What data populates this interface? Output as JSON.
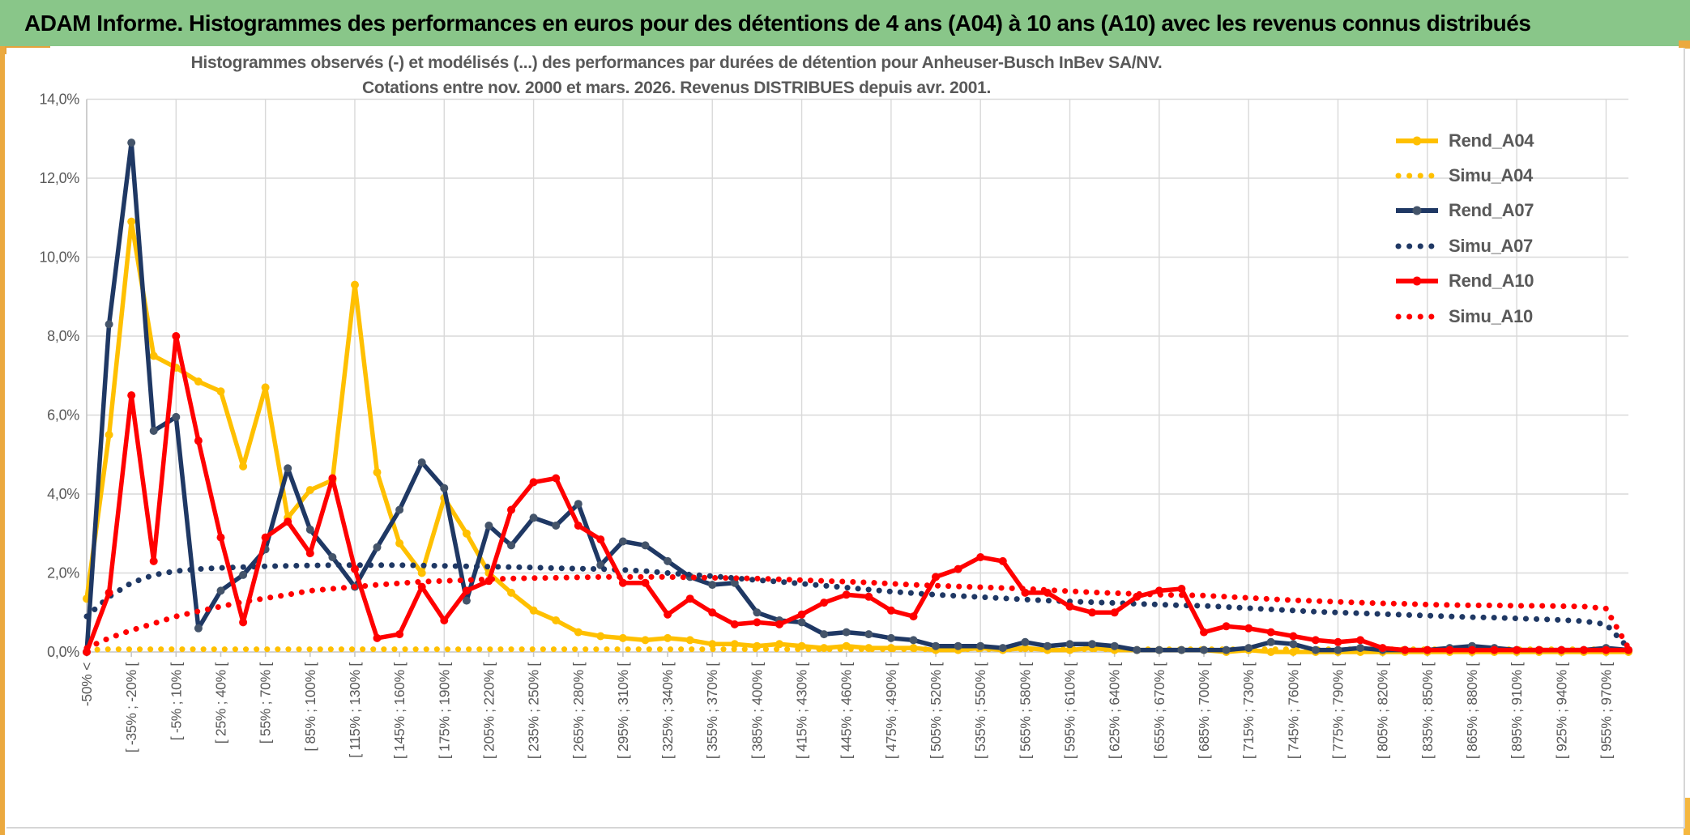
{
  "header": {
    "title": "ADAM Informe. Histogrammes des performances en euros pour des détentions de 4 ans (A04) à 10 ans (A10) avec les revenus connus distribués"
  },
  "chart": {
    "title_line1": "Histogrammes observés (-) et modélisés (...) des performances par durées de détention pour Anheuser-Busch InBev SA/NV.",
    "title_line2": "Cotations entre nov. 2000 et mars. 2026. Revenus DISTRIBUES depuis avr. 2001."
  },
  "colors": {
    "header_green": "#89C689",
    "accent_gold": "#EBA93F",
    "gridline": "#D9D9D9",
    "axis": "#C6C6C6",
    "text_gray": "#595959",
    "rend_a04": "#FFC000",
    "rend_a07": "#1F3864",
    "rend_a07_marker": "#44546A",
    "rend_a10": "#FF0000"
  },
  "chart_data": {
    "type": "line",
    "title": "Histogrammes observés (-) et modélisés (...) des performances par durées de détention pour Anheuser-Busch InBev SA/NV.",
    "subtitle": "Cotations entre nov. 2000 et mars. 2026. Revenus DISTRIBUES depuis avr. 2001.",
    "ylim": [
      0,
      14
    ],
    "y_tick_labels": [
      "0,0%",
      "2,0%",
      "4,0%",
      "6,0%",
      "8,0%",
      "10,0%",
      "12,0%",
      "14,0%"
    ],
    "grid": true,
    "legend_position": "right",
    "points_per_label": 2,
    "x_tick_labels": [
      "-50% <",
      "[ -35% ; -20% [",
      "[ -5% ; 10% [",
      "[ 25% ; 40% [",
      "[ 55% ; 70% [",
      "[ 85% ; 100% [",
      "[ 115% ; 130% [",
      "[ 145% ; 160% [",
      "[ 175% ; 190% [",
      "[ 205% ; 220% [",
      "[ 235% ; 250% [",
      "[ 265% ; 280% [",
      "[ 295% ; 310% [",
      "[ 325% ; 340% [",
      "[ 355% ; 370% [",
      "[ 385% ; 400% [",
      "[ 415% ; 430% [",
      "[ 445% ; 460% [",
      "[ 475% ; 490% [",
      "[ 505% ; 520% [",
      "[ 535% ; 550% [",
      "[ 565% ; 580% [",
      "[ 595% ; 610% [",
      "[ 625% ; 640% [",
      "[ 655% ; 670% [",
      "[ 685% ; 700% [",
      "[ 715% ; 730% [",
      "[ 745% ; 760% [",
      "[ 775% ; 790% [",
      "[ 805% ; 820% [",
      "[ 835% ; 850% [",
      "[ 865% ; 880% [",
      "[ 895% ; 910% [",
      "[ 925% ; 940% [",
      "[ 955% ; 970% ["
    ],
    "series": [
      {
        "name": "Rend_A04",
        "style": "solid",
        "color": "#FFC000",
        "marker": "#FFC000",
        "values": [
          1.35,
          5.5,
          10.9,
          7.5,
          7.2,
          6.85,
          6.6,
          4.7,
          6.7,
          3.4,
          4.1,
          4.35,
          9.3,
          4.55,
          2.75,
          2.0,
          3.9,
          3.0,
          2.0,
          1.5,
          1.05,
          0.8,
          0.5,
          0.4,
          0.35,
          0.3,
          0.35,
          0.3,
          0.2,
          0.2,
          0.15,
          0.2,
          0.15,
          0.1,
          0.15,
          0.1,
          0.1,
          0.1,
          0.05,
          0.05,
          0.1,
          0.05,
          0.1,
          0.05,
          0.05,
          0.1,
          0.05,
          0.05,
          0.05,
          0.05,
          0.05,
          0,
          0.05,
          0,
          0,
          0,
          0,
          0,
          0,
          0,
          0,
          0,
          0,
          0,
          0,
          0,
          0,
          0,
          0,
          0
        ]
      },
      {
        "name": "Simu_A04",
        "style": "dotted",
        "color": "#FFC000",
        "values": [
          0.05,
          0.07,
          0.07,
          0.07,
          0.07,
          0.07,
          0.07,
          0.07,
          0.07,
          0.07,
          0.07,
          0.07,
          0.07,
          0.07,
          0.07,
          0.07,
          0.07,
          0.07,
          0.07,
          0.07,
          0.07,
          0.07,
          0.07,
          0.07,
          0.07,
          0.07,
          0.07,
          0.07,
          0.07,
          0.07,
          0.07,
          0.07,
          0.07,
          0.07,
          0.07,
          0.07,
          0.07,
          0.07,
          0.07,
          0.07,
          0.07,
          0.07,
          0.07,
          0.07,
          0.07,
          0.07,
          0.07,
          0.07,
          0.07,
          0.07,
          0.07,
          0.07,
          0.07,
          0.07,
          0.07,
          0.07,
          0.07,
          0.07,
          0.07,
          0.07,
          0.07,
          0.07,
          0.07,
          0.07,
          0.07,
          0.07,
          0.07,
          0.07,
          0.07,
          0.05
        ]
      },
      {
        "name": "Rend_A07",
        "style": "solid",
        "color": "#1F3864",
        "marker": "#44546A",
        "values": [
          0.0,
          8.3,
          12.9,
          5.6,
          5.95,
          0.6,
          1.55,
          1.95,
          2.6,
          4.65,
          3.1,
          2.4,
          1.65,
          2.65,
          3.6,
          4.8,
          4.15,
          1.3,
          3.2,
          2.7,
          3.4,
          3.2,
          3.75,
          2.2,
          2.8,
          2.7,
          2.3,
          1.9,
          1.7,
          1.75,
          1.0,
          0.8,
          0.75,
          0.45,
          0.5,
          0.45,
          0.35,
          0.3,
          0.15,
          0.15,
          0.15,
          0.1,
          0.25,
          0.15,
          0.2,
          0.2,
          0.15,
          0.05,
          0.05,
          0.05,
          0.05,
          0.05,
          0.1,
          0.25,
          0.2,
          0.05,
          0.05,
          0.1,
          0.05,
          0.05,
          0.05,
          0.1,
          0.15,
          0.1,
          0.05,
          0.05,
          0.05,
          0.05,
          0.1,
          0.05
        ]
      },
      {
        "name": "Simu_A07",
        "style": "dotted",
        "color": "#1F3864",
        "values": [
          0.9,
          1.4,
          1.75,
          1.95,
          2.05,
          2.1,
          2.13,
          2.15,
          2.17,
          2.18,
          2.19,
          2.2,
          2.2,
          2.2,
          2.2,
          2.19,
          2.18,
          2.17,
          2.16,
          2.15,
          2.14,
          2.12,
          2.11,
          2.1,
          2.08,
          2.05,
          2.0,
          1.96,
          1.92,
          1.87,
          1.82,
          1.78,
          1.73,
          1.68,
          1.63,
          1.58,
          1.53,
          1.49,
          1.45,
          1.42,
          1.39,
          1.36,
          1.33,
          1.3,
          1.28,
          1.26,
          1.24,
          1.22,
          1.2,
          1.18,
          1.17,
          1.14,
          1.11,
          1.08,
          1.05,
          1.02,
          1.0,
          0.98,
          0.96,
          0.94,
          0.92,
          0.9,
          0.88,
          0.87,
          0.85,
          0.83,
          0.81,
          0.78,
          0.7,
          0.1
        ]
      },
      {
        "name": "Rend_A10",
        "style": "solid",
        "color": "#FF0000",
        "marker": "#FF0000",
        "values": [
          0.0,
          1.5,
          6.5,
          2.3,
          8.0,
          5.35,
          2.9,
          0.75,
          2.9,
          3.3,
          2.5,
          4.4,
          2.1,
          0.35,
          0.45,
          1.65,
          0.8,
          1.55,
          1.8,
          3.6,
          4.3,
          4.4,
          3.2,
          2.85,
          1.75,
          1.75,
          0.95,
          1.35,
          1.0,
          0.7,
          0.75,
          0.7,
          0.95,
          1.25,
          1.45,
          1.4,
          1.05,
          0.9,
          1.9,
          2.1,
          2.4,
          2.3,
          1.5,
          1.5,
          1.15,
          1.0,
          1.0,
          1.4,
          1.55,
          1.6,
          0.5,
          0.65,
          0.6,
          0.5,
          0.4,
          0.3,
          0.25,
          0.3,
          0.1,
          0.05,
          0.05,
          0.05,
          0.05,
          0.05,
          0.05,
          0.05,
          0.05,
          0.05,
          0.05,
          0.05
        ]
      },
      {
        "name": "Simu_A10",
        "style": "dotted",
        "color": "#FF0000",
        "values": [
          0.1,
          0.35,
          0.55,
          0.72,
          0.9,
          1.03,
          1.15,
          1.27,
          1.36,
          1.45,
          1.55,
          1.6,
          1.65,
          1.7,
          1.74,
          1.78,
          1.8,
          1.82,
          1.84,
          1.86,
          1.87,
          1.88,
          1.89,
          1.9,
          1.9,
          1.9,
          1.9,
          1.89,
          1.88,
          1.87,
          1.86,
          1.84,
          1.82,
          1.8,
          1.78,
          1.76,
          1.73,
          1.7,
          1.68,
          1.66,
          1.64,
          1.62,
          1.6,
          1.57,
          1.54,
          1.51,
          1.49,
          1.47,
          1.45,
          1.44,
          1.43,
          1.4,
          1.37,
          1.34,
          1.31,
          1.29,
          1.27,
          1.25,
          1.23,
          1.22,
          1.2,
          1.19,
          1.18,
          1.18,
          1.17,
          1.17,
          1.16,
          1.15,
          1.1,
          0.1
        ]
      }
    ]
  }
}
